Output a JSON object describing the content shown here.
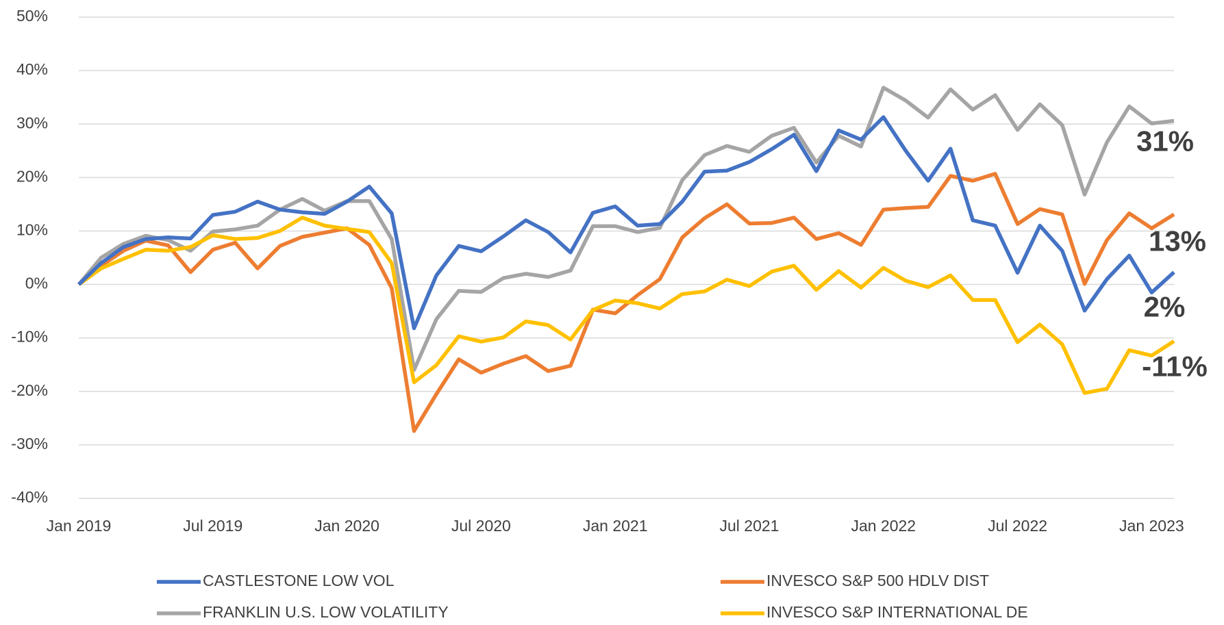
{
  "chart_data": {
    "type": "line",
    "x": [
      "Jan 2019",
      "Feb 2019",
      "Mar 2019",
      "Apr 2019",
      "May 2019",
      "Jun 2019",
      "Jul 2019",
      "Aug 2019",
      "Sep 2019",
      "Oct 2019",
      "Nov 2019",
      "Dec 2019",
      "Jan 2020",
      "Feb 2020",
      "Mar 2020",
      "Apr 2020",
      "May 2020",
      "Jun 2020",
      "Jul 2020",
      "Aug 2020",
      "Sep 2020",
      "Oct 2020",
      "Nov 2020",
      "Dec 2020",
      "Jan 2021",
      "Feb 2021",
      "Mar 2021",
      "Apr 2021",
      "May 2021",
      "Jun 2021",
      "Jul 2021",
      "Aug 2021",
      "Sep 2021",
      "Oct 2021",
      "Nov 2021",
      "Dec 2021",
      "Jan 2022",
      "Feb 2022",
      "Mar 2022",
      "Apr 2022",
      "May 2022",
      "Jun 2022",
      "Jul 2022",
      "Aug 2022",
      "Sep 2022",
      "Oct 2022",
      "Nov 2022",
      "Dec 2022",
      "Jan 2023",
      "Feb 2023"
    ],
    "xticks": [
      "Jan 2019",
      "Jul 2019",
      "Jan 2020",
      "Jul 2020",
      "Jan 2021",
      "Jul 2021",
      "Jan 2022",
      "Jul 2022",
      "Jan 2023"
    ],
    "ylim": [
      -40,
      50
    ],
    "yticks": [
      {
        "value": -40,
        "label": "-40%"
      },
      {
        "value": -30,
        "label": "-30%"
      },
      {
        "value": -20,
        "label": "-20%"
      },
      {
        "value": -10,
        "label": "-10%"
      },
      {
        "value": 0,
        "label": "0%"
      },
      {
        "value": 10,
        "label": "10%"
      },
      {
        "value": 20,
        "label": "20%"
      },
      {
        "value": 30,
        "label": "30%"
      },
      {
        "value": 40,
        "label": "40%"
      },
      {
        "value": 50,
        "label": "50%"
      }
    ],
    "grid": true,
    "legend": "bottom",
    "series": [
      {
        "name": "CASTLESTONE LOW VOL",
        "color": "#4472c4",
        "end_label": "2%",
        "values": [
          0,
          4,
          7,
          8.5,
          8.8,
          8.6,
          13,
          13.6,
          15.5,
          14,
          13.5,
          13.2,
          15.5,
          18.3,
          13.3,
          -8.2,
          1.7,
          7.2,
          6.2,
          9,
          12,
          9.8,
          6,
          13.4,
          14.6,
          11,
          11.3,
          15.5,
          21.1,
          21.3,
          22.9,
          25.3,
          28,
          21.2,
          28.8,
          27.1,
          31.3,
          25,
          19.4,
          25.4,
          12,
          11,
          2.2,
          11,
          6.3,
          -4.9,
          1,
          5.4,
          -1.5,
          2.3
        ]
      },
      {
        "name": "INVESCO S&P 500 HDLV DIST",
        "color": "#ed7d31",
        "end_label": "13%",
        "values": [
          0,
          3.5,
          6.3,
          8.2,
          7.3,
          2.3,
          6.5,
          7.8,
          3,
          7.2,
          8.9,
          9.7,
          10.5,
          7.4,
          -0.7,
          -27.4,
          -20.5,
          -14,
          -16.5,
          -14.8,
          -13.4,
          -16.2,
          -15.2,
          -4.7,
          -5.4,
          -2,
          1,
          8.8,
          12.4,
          15,
          11.4,
          11.5,
          12.5,
          8.5,
          9.6,
          7.4,
          14,
          14.3,
          14.5,
          20.3,
          19.4,
          20.7,
          11.3,
          14.1,
          13.1,
          0.1,
          8.3,
          13.3,
          10.5,
          13.1
        ]
      },
      {
        "name": "FRANKLIN U.S. LOW VOLATILITY",
        "color": "#a5a5a5",
        "end_label": "31%",
        "values": [
          0,
          5,
          7.6,
          9.1,
          8.3,
          6.3,
          9.9,
          10.3,
          11,
          14,
          16,
          13.8,
          15.6,
          15.6,
          8.5,
          -16,
          -6.5,
          -1.2,
          -1.4,
          1.2,
          2,
          1.4,
          2.6,
          10.9,
          10.9,
          9.8,
          10.6,
          19.5,
          24.2,
          25.9,
          24.8,
          27.8,
          29.3,
          22.8,
          27.8,
          25.8,
          36.8,
          34.4,
          31.2,
          36.5,
          32.7,
          35.4,
          28.9,
          33.7,
          29.8,
          16.8,
          26.6,
          33.3,
          30.1,
          30.6
        ]
      },
      {
        "name": "INVESCO S&P INTERNATIONAL DE",
        "color": "#ffc000",
        "end_label": "-11%",
        "values": [
          0,
          3,
          4.8,
          6.5,
          6.3,
          7,
          9.2,
          8.5,
          8.7,
          10,
          12.5,
          11,
          10.4,
          9.8,
          4,
          -18.3,
          -15.1,
          -9.7,
          -10.7,
          -9.9,
          -6.9,
          -7.6,
          -10.3,
          -4.8,
          -3,
          -3.5,
          -4.5,
          -1.8,
          -1.3,
          0.9,
          -0.3,
          2.4,
          3.5,
          -1,
          2.5,
          -0.6,
          3.1,
          0.7,
          -0.5,
          1.7,
          -2.9,
          -2.9,
          -10.8,
          -7.5,
          -11.2,
          -20.3,
          -19.5,
          -12.3,
          -13.3,
          -10.6
        ]
      }
    ]
  }
}
